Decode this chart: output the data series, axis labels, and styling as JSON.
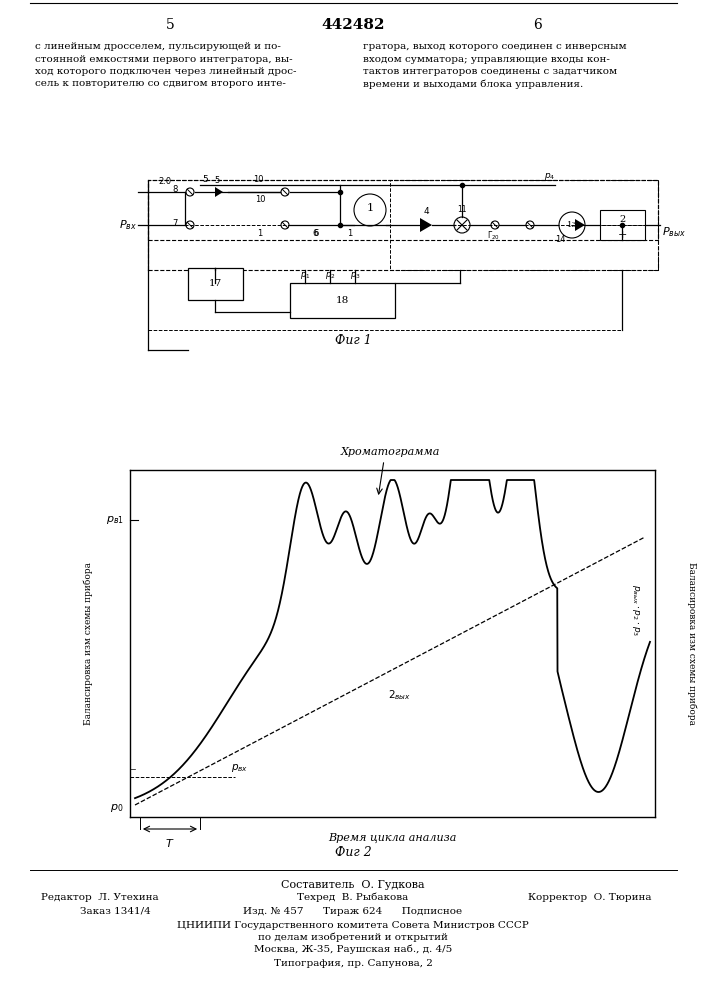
{
  "page_number_center": "442482",
  "page_num_left": "5",
  "page_num_right": "6",
  "text_left": "с линейным дросселем, пульсирующей и по-\nстоянной емкостями первого интегратора, вы-\nход которого подключен через линейный дрос-\nсель к повторителю со сдвигом второго инте-",
  "text_right": "гратора, выход которого соединен с инверсным\nвходом сумматора; управляющие входы кон-\nтактов интеграторов соединены с задатчиком\nвремени и выходами блока управления.",
  "fig1_caption": "Фиг 1",
  "fig2_caption": "Фиг 2",
  "ylabel_left": "Балансировка изм схемы прибора",
  "ylabel_right": "Балансировка изм схемы прибора",
  "xlabel": "Время цикла анализа",
  "chrom_label": "Хроматограмма",
  "label_2vykh": "2 вых",
  "footer_line1": "Составитель  О. Гудкова",
  "footer_ed": "Редактор  Л. Утехина",
  "footer_tech": "Техред  В. Рыбакова",
  "footer_corr": "Корректор  О. Тюрина",
  "footer_order": "Заказ 1341/4",
  "footer_mid": "Изд. № 457      Тираж 624      Подписное",
  "footer_org": "ЦНИИПИ Государственного комитета Совета Министров СССР",
  "footer_sub": "по делам изобретений и открытий",
  "footer_addr": "Москва, Ж-35, Раушская наб., д. 4/5",
  "footer_typ": "Типография, пр. Сапунова, 2",
  "bg_color": "#ffffff",
  "text_color": "#000000"
}
